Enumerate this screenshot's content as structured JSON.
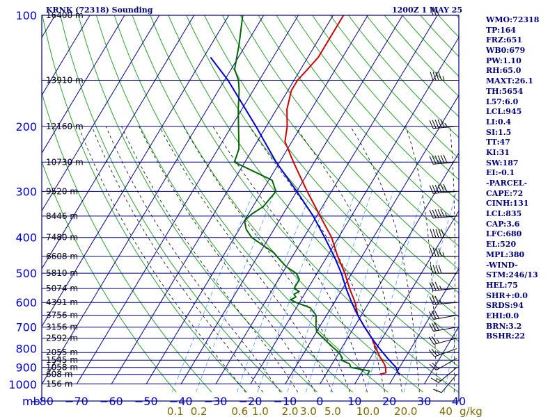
{
  "header": {
    "station": "KRNK (72318) Sounding",
    "datetime": "1200Z  1 MAY 25"
  },
  "indices": [
    "WMO:72318",
    "TP:164",
    "FRZ:651",
    "WB0:679",
    "PW:1.10",
    "RH:65.0",
    "MAXT:26.1",
    "TH:5654",
    "L57:6.0",
    "LCL:945",
    "LI:0.4",
    "SI:1.5",
    "TT:47",
    "KI:31",
    "SW:187",
    "EI:-0.1",
    "-PARCEL-",
    "CAPE:72",
    "CINH:131",
    "LCL:835",
    "CAP:3.6",
    "LFC:680",
    "EL:520",
    "MPL:380",
    "-WIND-",
    "STM:246/13",
    "HEL:75",
    "SHR+:0.0",
    "SRDS:94",
    "EHI:0.0",
    "BRN:3.2",
    "BSHR:22"
  ],
  "colors": {
    "frame": "#00007a",
    "pressure_label": "#0000cc",
    "height_label": "#000000",
    "isotherm": "#000088",
    "dry_adiabat": "#2aa02a",
    "moist_adiabat": "#000000",
    "mixing_ratio": "#4aa0e0",
    "temperature": "#cc0000",
    "dewpoint": "#006600",
    "parcel": "#0000cc",
    "wind": "#000000",
    "mixing_ratio_label": "#7a6a00"
  },
  "chart_data": {
    "type": "line",
    "title": "KRNK (72318) Sounding",
    "xlabel": "",
    "ylabel": "mb",
    "x_units": "degC",
    "xlim": [
      -80,
      40
    ],
    "ylim": [
      1000,
      100
    ],
    "y_scale": "log",
    "skew": true,
    "grid": true,
    "x_ticks": [
      -80,
      -70,
      -60,
      -50,
      -40,
      -30,
      -20,
      -10,
      0,
      10,
      20,
      30,
      40
    ],
    "x_tick_labels": [
      "−80",
      "−70",
      "−60",
      "−50",
      "−40",
      "−30",
      "−20",
      "−10",
      "0",
      "10",
      "20",
      "30",
      "40"
    ],
    "pressure_levels": [
      1000,
      900,
      800,
      700,
      600,
      500,
      400,
      300,
      200,
      100
    ],
    "y_tick_labels": [
      "1000",
      "900",
      "800",
      "700",
      "600",
      "500",
      "400",
      "300",
      "200",
      "100"
    ],
    "y_axis_unit_label": "mb",
    "height_levels": [
      {
        "p": 997,
        "label": "156 m"
      },
      {
        "p": 940,
        "label": "608 m"
      },
      {
        "p": 900,
        "label": "1058 m"
      },
      {
        "p": 860,
        "label": "1545 m"
      },
      {
        "p": 820,
        "label": "2055 m"
      },
      {
        "p": 750,
        "label": "2592 m"
      },
      {
        "p": 700,
        "label": "3156 m"
      },
      {
        "p": 650,
        "label": "3756 m"
      },
      {
        "p": 600,
        "label": "4391 m"
      },
      {
        "p": 550,
        "label": "5074 m"
      },
      {
        "p": 500,
        "label": "5810 m"
      },
      {
        "p": 450,
        "label": "6608 m"
      },
      {
        "p": 400,
        "label": "7480 m"
      },
      {
        "p": 350,
        "label": "8446 m"
      },
      {
        "p": 300,
        "label": "9520 m"
      },
      {
        "p": 250,
        "label": "10730 m"
      },
      {
        "p": 200,
        "label": "12160 m"
      },
      {
        "p": 150,
        "label": "13910 m"
      },
      {
        "p": 100,
        "label": "16400 m"
      }
    ],
    "mixing_ratio_labels": [
      "0.1",
      "0.2",
      "0.6",
      "1.0",
      "2.0",
      "3.0",
      "5.0",
      "10.0",
      "20.0",
      "40"
    ],
    "mixing_ratio_unit": "g/kg",
    "mixing_ratio_values": [
      0.1,
      0.2,
      0.6,
      1.0,
      2.0,
      3.0,
      5.0,
      10.0,
      20.0,
      40
    ],
    "series": [
      {
        "key": "temperature",
        "points": [
          [
            940,
            15.5
          ],
          [
            930,
            17
          ],
          [
            900,
            16
          ],
          [
            880,
            15
          ],
          [
            850,
            13
          ],
          [
            800,
            10
          ],
          [
            750,
            7
          ],
          [
            700,
            3
          ],
          [
            650,
            -1
          ],
          [
            600,
            -4
          ],
          [
            550,
            -8
          ],
          [
            500,
            -12
          ],
          [
            450,
            -17
          ],
          [
            400,
            -22
          ],
          [
            350,
            -29
          ],
          [
            300,
            -37
          ],
          [
            250,
            -46
          ],
          [
            220,
            -52
          ],
          [
            200,
            -54
          ],
          [
            180,
            -57
          ],
          [
            160,
            -59
          ],
          [
            150,
            -59
          ],
          [
            140,
            -58
          ],
          [
            130,
            -57
          ],
          [
            100,
            -57
          ]
        ]
      },
      {
        "key": "dewpoint",
        "points": [
          [
            940,
            12
          ],
          [
            920,
            12
          ],
          [
            900,
            6
          ],
          [
            880,
            5
          ],
          [
            860,
            2
          ],
          [
            850,
            2
          ],
          [
            820,
            0
          ],
          [
            800,
            -2
          ],
          [
            760,
            -6
          ],
          [
            720,
            -10
          ],
          [
            700,
            -11
          ],
          [
            650,
            -13
          ],
          [
            620,
            -16
          ],
          [
            600,
            -21
          ],
          [
            590,
            -23
          ],
          [
            580,
            -22
          ],
          [
            570,
            -23
          ],
          [
            560,
            -22
          ],
          [
            550,
            -24
          ],
          [
            520,
            -24
          ],
          [
            500,
            -26
          ],
          [
            480,
            -30
          ],
          [
            460,
            -33
          ],
          [
            440,
            -36
          ],
          [
            400,
            -45
          ],
          [
            380,
            -48
          ],
          [
            360,
            -50
          ],
          [
            345,
            -49
          ],
          [
            330,
            -47
          ],
          [
            300,
            -46
          ],
          [
            280,
            -49
          ],
          [
            250,
            -63
          ],
          [
            230,
            -64
          ],
          [
            200,
            -68
          ],
          [
            180,
            -71
          ],
          [
            160,
            -74
          ],
          [
            150,
            -76
          ],
          [
            140,
            -79
          ],
          [
            120,
            -82
          ],
          [
            100,
            -86
          ]
        ]
      },
      {
        "key": "parcel",
        "points": [
          [
            940,
            21
          ],
          [
            900,
            19
          ],
          [
            850,
            15
          ],
          [
            800,
            11
          ],
          [
            750,
            7
          ],
          [
            700,
            3
          ],
          [
            650,
            -1
          ],
          [
            600,
            -5
          ],
          [
            550,
            -9
          ],
          [
            500,
            -13
          ],
          [
            450,
            -18
          ],
          [
            400,
            -24
          ],
          [
            350,
            -31
          ],
          [
            300,
            -40
          ],
          [
            250,
            -51
          ],
          [
            200,
            -63
          ],
          [
            150,
            -79
          ],
          [
            130,
            -88
          ]
        ]
      }
    ],
    "wind_barbs": [
      {
        "p": 940,
        "dir": 220,
        "spd": 10
      },
      {
        "p": 900,
        "dir": 230,
        "spd": 15
      },
      {
        "p": 850,
        "dir": 240,
        "spd": 20
      },
      {
        "p": 800,
        "dir": 250,
        "spd": 25
      },
      {
        "p": 750,
        "dir": 255,
        "spd": 25
      },
      {
        "p": 700,
        "dir": 260,
        "spd": 30
      },
      {
        "p": 650,
        "dir": 260,
        "spd": 30
      },
      {
        "p": 600,
        "dir": 265,
        "spd": 35
      },
      {
        "p": 550,
        "dir": 265,
        "spd": 35
      },
      {
        "p": 500,
        "dir": 270,
        "spd": 40
      },
      {
        "p": 450,
        "dir": 270,
        "spd": 45
      },
      {
        "p": 400,
        "dir": 270,
        "spd": 50
      },
      {
        "p": 350,
        "dir": 265,
        "spd": 55
      },
      {
        "p": 300,
        "dir": 265,
        "spd": 60
      },
      {
        "p": 250,
        "dir": 265,
        "spd": 60
      },
      {
        "p": 200,
        "dir": 265,
        "spd": 55
      },
      {
        "p": 150,
        "dir": 270,
        "spd": 45
      },
      {
        "p": 100,
        "dir": 270,
        "spd": 30
      }
    ]
  }
}
